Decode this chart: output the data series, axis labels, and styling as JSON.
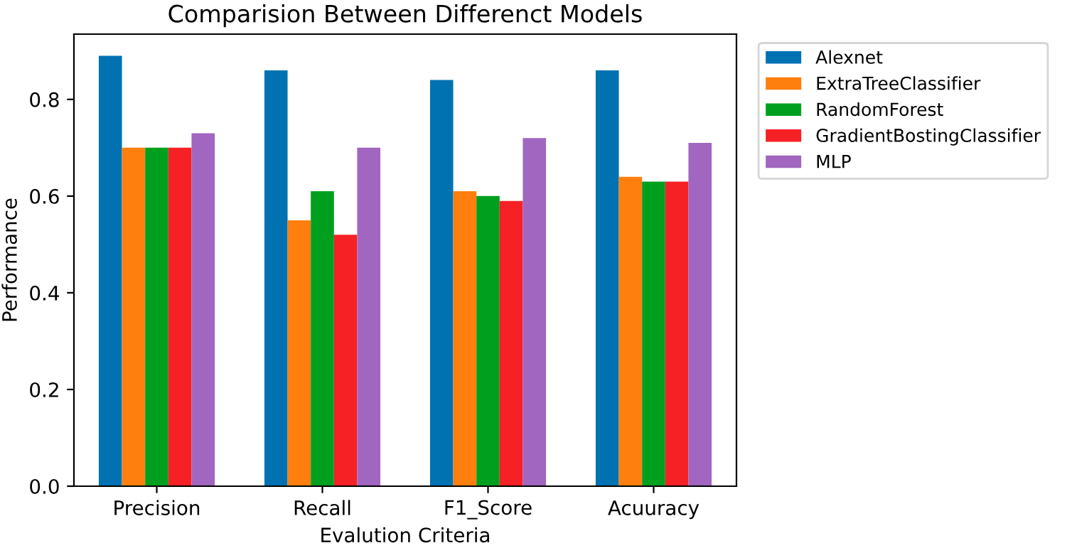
{
  "chart_data": {
    "type": "bar",
    "title": "Comparision Between Differenct Models",
    "xlabel": "Evalution Criteria",
    "ylabel": "Performance",
    "categories": [
      "Precision",
      "Recall",
      "F1_Score",
      "Acuuracy"
    ],
    "series": [
      {
        "name": "Alexnet",
        "color": "#0072b2",
        "values": [
          0.89,
          0.86,
          0.84,
          0.86
        ]
      },
      {
        "name": "ExtraTreeClassifier",
        "color": "#ff7f0e",
        "values": [
          0.7,
          0.55,
          0.61,
          0.64
        ]
      },
      {
        "name": "RandomForest",
        "color": "#00a01e",
        "values": [
          0.7,
          0.61,
          0.6,
          0.63
        ]
      },
      {
        "name": "GradientBostingClassifier",
        "color": "#f52125",
        "values": [
          0.7,
          0.52,
          0.59,
          0.63
        ]
      },
      {
        "name": "MLP",
        "color": "#a066c0",
        "values": [
          0.73,
          0.7,
          0.72,
          0.71
        ]
      }
    ],
    "ylim": [
      0,
      0.935
    ],
    "yticks": [
      {
        "value": 0,
        "label": "0.0"
      },
      {
        "value": 0.2,
        "label": "0.2"
      },
      {
        "value": 0.4,
        "label": "0.4"
      },
      {
        "value": 0.6,
        "label": "0.6"
      },
      {
        "value": 0.8,
        "label": "0.8"
      }
    ],
    "grid": false,
    "legend": "top right"
  }
}
